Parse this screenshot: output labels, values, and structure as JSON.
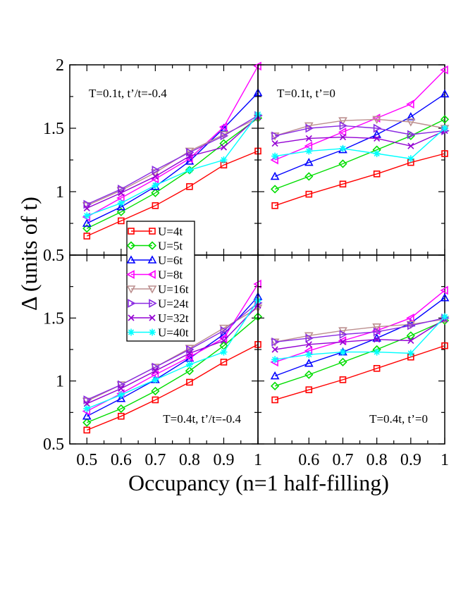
{
  "chart_data": {
    "type": "line",
    "ylabel": "Δ (units of t)",
    "xlabel": "Occupancy (n=1 half-filling)",
    "xlim": [
      0.45,
      1.0
    ],
    "x_ticks": [
      "0.5",
      "0.6",
      "0.7",
      "0.8",
      "0.9",
      "1"
    ],
    "x_ticks_right": [
      "0.6",
      "0.7",
      "0.8",
      "0.9",
      "1"
    ],
    "legend": {
      "placement": "center-left",
      "entries": [
        "U=4t",
        "U=5t",
        "U=6t",
        "U=8t",
        "U=16t",
        "U=24t",
        "U=32t",
        "U=40t"
      ]
    },
    "series_styles": [
      {
        "name": "U=4t",
        "color": "#ff0000",
        "marker": "square"
      },
      {
        "name": "U=5t",
        "color": "#00dd00",
        "marker": "diamond"
      },
      {
        "name": "U=6t",
        "color": "#0000ff",
        "marker": "triangle-up"
      },
      {
        "name": "U=8t",
        "color": "#ff00ff",
        "marker": "triangle-left"
      },
      {
        "name": "U=16t",
        "color": "#bc8f8f",
        "marker": "triangle-down"
      },
      {
        "name": "U=24t",
        "color": "#8a2be2",
        "marker": "triangle-right"
      },
      {
        "name": "U=32t",
        "color": "#9400d3",
        "marker": "x"
      },
      {
        "name": "U=40t",
        "color": "#00ffff",
        "marker": "star"
      }
    ],
    "panels": [
      {
        "id": "top-left",
        "label": "T=0.1t, t’/t=-0.4",
        "label_pos": "top-left",
        "ylim": [
          0.5,
          2.0
        ],
        "y_ticks": [
          "0.5",
          "1",
          "1.5",
          "2"
        ],
        "x": [
          0.5,
          0.6,
          0.7,
          0.8,
          0.9,
          1.0
        ],
        "series": [
          {
            "name": "U=4t",
            "values": [
              0.65,
              0.77,
              0.89,
              1.04,
              1.21,
              1.32
            ]
          },
          {
            "name": "U=5t",
            "values": [
              0.71,
              0.84,
              0.99,
              1.17,
              1.38,
              1.58
            ]
          },
          {
            "name": "U=6t",
            "values": [
              0.75,
              0.88,
              1.04,
              1.24,
              1.5,
              1.78
            ]
          },
          {
            "name": "U=8t",
            "values": [
              0.8,
              0.95,
              1.1,
              1.26,
              1.51,
              1.99
            ]
          },
          {
            "name": "U=16t",
            "values": [
              0.89,
              1.01,
              1.15,
              1.32,
              1.45,
              1.58
            ]
          },
          {
            "name": "U=24t",
            "values": [
              0.9,
              1.02,
              1.17,
              1.31,
              1.44,
              1.6
            ]
          },
          {
            "name": "U=32t",
            "values": [
              0.87,
              0.99,
              1.12,
              1.28,
              1.35,
              1.59
            ]
          },
          {
            "name": "U=40t",
            "values": [
              0.81,
              0.91,
              1.05,
              1.17,
              1.25,
              1.61
            ]
          }
        ]
      },
      {
        "id": "top-right",
        "label": "T=0.1t, t’=0",
        "label_pos": "top-left",
        "ylim": [
          0.5,
          2.0
        ],
        "y_ticks": [],
        "x": [
          0.5,
          0.6,
          0.7,
          0.8,
          0.9,
          1.0
        ],
        "series": [
          {
            "name": "U=4t",
            "values": [
              0.89,
              0.98,
              1.06,
              1.14,
              1.23,
              1.3
            ]
          },
          {
            "name": "U=5t",
            "values": [
              1.02,
              1.12,
              1.22,
              1.33,
              1.44,
              1.57
            ]
          },
          {
            "name": "U=6t",
            "values": [
              1.12,
              1.23,
              1.33,
              1.45,
              1.59,
              1.77
            ]
          },
          {
            "name": "U=8t",
            "values": [
              1.25,
              1.36,
              1.47,
              1.58,
              1.69,
              1.96
            ]
          },
          {
            "name": "U=16t",
            "values": [
              1.44,
              1.52,
              1.56,
              1.57,
              1.55,
              1.5
            ]
          },
          {
            "name": "U=24t",
            "values": [
              1.44,
              1.5,
              1.52,
              1.5,
              1.45,
              1.48
            ]
          },
          {
            "name": "U=32t",
            "values": [
              1.38,
              1.42,
              1.43,
              1.42,
              1.36,
              1.48
            ]
          },
          {
            "name": "U=40t",
            "values": [
              1.28,
              1.32,
              1.34,
              1.3,
              1.26,
              1.5
            ]
          }
        ]
      },
      {
        "id": "bottom-left",
        "label": "T=0.4t, t’/t=-0.4",
        "label_pos": "bottom-right",
        "ylim": [
          0.5,
          2.0
        ],
        "y_ticks": [
          "0.5",
          "1",
          "1.5"
        ],
        "x": [
          0.5,
          0.6,
          0.7,
          0.8,
          0.9,
          1.0
        ],
        "series": [
          {
            "name": "U=4t",
            "values": [
              0.61,
              0.72,
              0.85,
              0.99,
              1.15,
              1.29
            ]
          },
          {
            "name": "U=5t",
            "values": [
              0.67,
              0.78,
              0.92,
              1.08,
              1.28,
              1.51
            ]
          },
          {
            "name": "U=6t",
            "values": [
              0.72,
              0.86,
              1.01,
              1.18,
              1.37,
              1.67
            ]
          },
          {
            "name": "U=8t",
            "values": [
              0.76,
              0.9,
              1.05,
              1.19,
              1.34,
              1.77
            ]
          },
          {
            "name": "U=16t",
            "values": [
              0.84,
              0.97,
              1.11,
              1.26,
              1.42,
              1.58
            ]
          },
          {
            "name": "U=24t",
            "values": [
              0.85,
              0.97,
              1.11,
              1.25,
              1.4,
              1.62
            ]
          },
          {
            "name": "U=32t",
            "values": [
              0.82,
              0.94,
              1.08,
              1.22,
              1.32,
              1.6
            ]
          },
          {
            "name": "U=40t",
            "values": [
              0.78,
              0.89,
              1.01,
              1.13,
              1.23,
              1.64
            ]
          }
        ]
      },
      {
        "id": "bottom-right",
        "label": "T=0.4t, t’=0",
        "label_pos": "bottom-right",
        "ylim": [
          0.5,
          2.0
        ],
        "y_ticks": [],
        "x": [
          0.5,
          0.6,
          0.7,
          0.8,
          0.9,
          1.0
        ],
        "series": [
          {
            "name": "U=4t",
            "values": [
              0.85,
              0.93,
              1.01,
              1.1,
              1.19,
              1.28
            ]
          },
          {
            "name": "U=5t",
            "values": [
              0.96,
              1.05,
              1.15,
              1.25,
              1.36,
              1.48
            ]
          },
          {
            "name": "U=6t",
            "values": [
              1.04,
              1.14,
              1.23,
              1.34,
              1.46,
              1.66
            ]
          },
          {
            "name": "U=8t",
            "values": [
              1.15,
              1.24,
              1.32,
              1.4,
              1.5,
              1.72
            ]
          },
          {
            "name": "U=16t",
            "values": [
              1.31,
              1.36,
              1.4,
              1.43,
              1.45,
              1.49
            ]
          },
          {
            "name": "U=24t",
            "values": [
              1.31,
              1.34,
              1.37,
              1.39,
              1.44,
              1.5
            ]
          },
          {
            "name": "U=32t",
            "values": [
              1.25,
              1.29,
              1.31,
              1.33,
              1.32,
              1.49
            ]
          },
          {
            "name": "U=40t",
            "values": [
              1.17,
              1.21,
              1.23,
              1.23,
              1.22,
              1.51
            ]
          }
        ]
      }
    ]
  }
}
